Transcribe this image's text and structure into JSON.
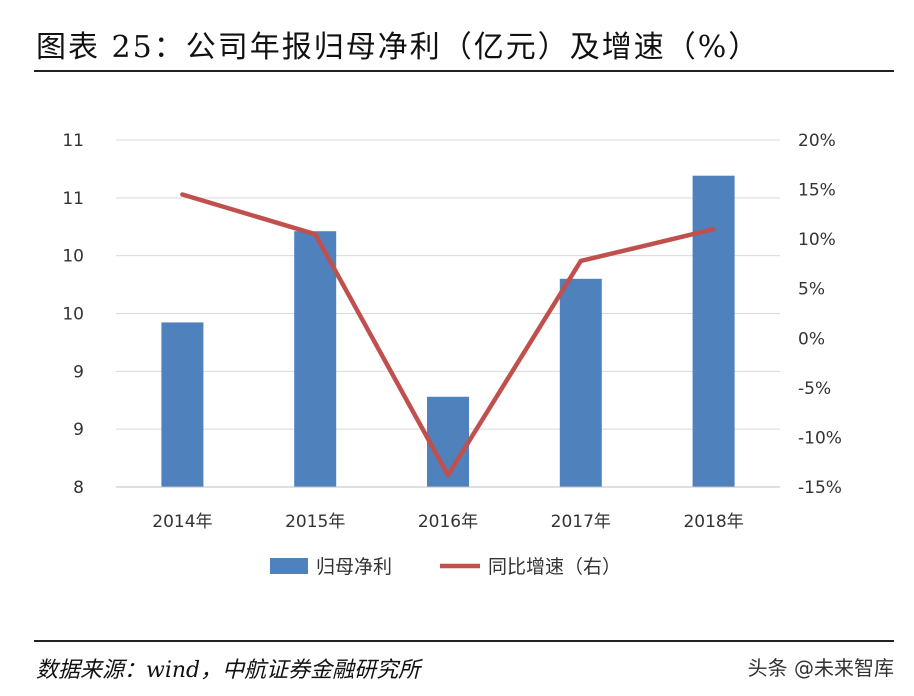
{
  "header": {
    "title": "图表 25：公司年报归母净利（亿元）及增速（%）"
  },
  "footer": {
    "source": "数据来源：wind，中航证券金融研究所",
    "watermark": "头条 @未来智库"
  },
  "chart_data": {
    "type": "bar",
    "categories": [
      "2014年",
      "2015年",
      "2016年",
      "2017年",
      "2018年"
    ],
    "series": [
      {
        "name": "归母净利",
        "type": "bar",
        "axis": "left",
        "color": "#4F81BD",
        "values": [
          9.66,
          10.58,
          8.91,
          10.1,
          11.14
        ]
      },
      {
        "name": "同比增速（右）",
        "type": "line",
        "axis": "right",
        "color": "#C0504D",
        "values": [
          14.5,
          10.5,
          -13.8,
          7.8,
          11.0
        ]
      }
    ],
    "y_left": {
      "min": 8,
      "max": 11.5,
      "tick_labels": [
        "11",
        "11",
        "10",
        "10",
        "9",
        "9",
        "8"
      ]
    },
    "y_right": {
      "min": -15,
      "max": 20,
      "tick_labels": [
        "20%",
        "15%",
        "10%",
        "5%",
        "0%",
        "-5%",
        "-10%",
        "-15%"
      ]
    },
    "grid": true,
    "legend": "bottom"
  }
}
